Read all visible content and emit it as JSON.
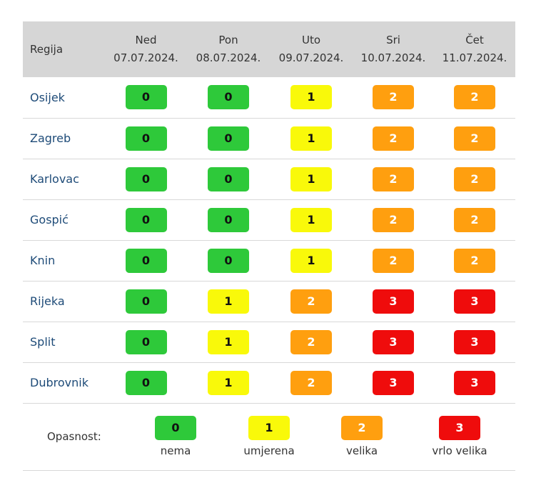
{
  "table": {
    "region_header": "Regija",
    "days": [
      {
        "name": "Ned",
        "date": "07.07.2024."
      },
      {
        "name": "Pon",
        "date": "08.07.2024."
      },
      {
        "name": "Uto",
        "date": "09.07.2024."
      },
      {
        "name": "Sri",
        "date": "10.07.2024."
      },
      {
        "name": "Čet",
        "date": "11.07.2024."
      }
    ],
    "rows": [
      {
        "region": "Osijek",
        "levels": [
          "0",
          "0",
          "1",
          "2",
          "2"
        ]
      },
      {
        "region": "Zagreb",
        "levels": [
          "0",
          "0",
          "1",
          "2",
          "2"
        ]
      },
      {
        "region": "Karlovac",
        "levels": [
          "0",
          "0",
          "1",
          "2",
          "2"
        ]
      },
      {
        "region": "Gospić",
        "levels": [
          "0",
          "0",
          "1",
          "2",
          "2"
        ]
      },
      {
        "region": "Knin",
        "levels": [
          "0",
          "0",
          "1",
          "2",
          "2"
        ]
      },
      {
        "region": "Rijeka",
        "levels": [
          "0",
          "1",
          "2",
          "3",
          "3"
        ]
      },
      {
        "region": "Split",
        "levels": [
          "0",
          "1",
          "2",
          "3",
          "3"
        ]
      },
      {
        "region": "Dubrovnik",
        "levels": [
          "0",
          "1",
          "2",
          "3",
          "3"
        ]
      }
    ]
  },
  "legend": {
    "label": "Opasnost:",
    "items": [
      {
        "value": "0",
        "text": "nema"
      },
      {
        "value": "1",
        "text": "umjerena"
      },
      {
        "value": "2",
        "text": "velika"
      },
      {
        "value": "3",
        "text": "vrlo velika"
      }
    ]
  },
  "colors": {
    "level_0": "#2ec93a",
    "level_1": "#f9f90a",
    "level_2": "#ff9f0f",
    "level_3": "#ef0c0c",
    "header_bg": "#d6d6d6",
    "region_text": "#1e4b78"
  }
}
